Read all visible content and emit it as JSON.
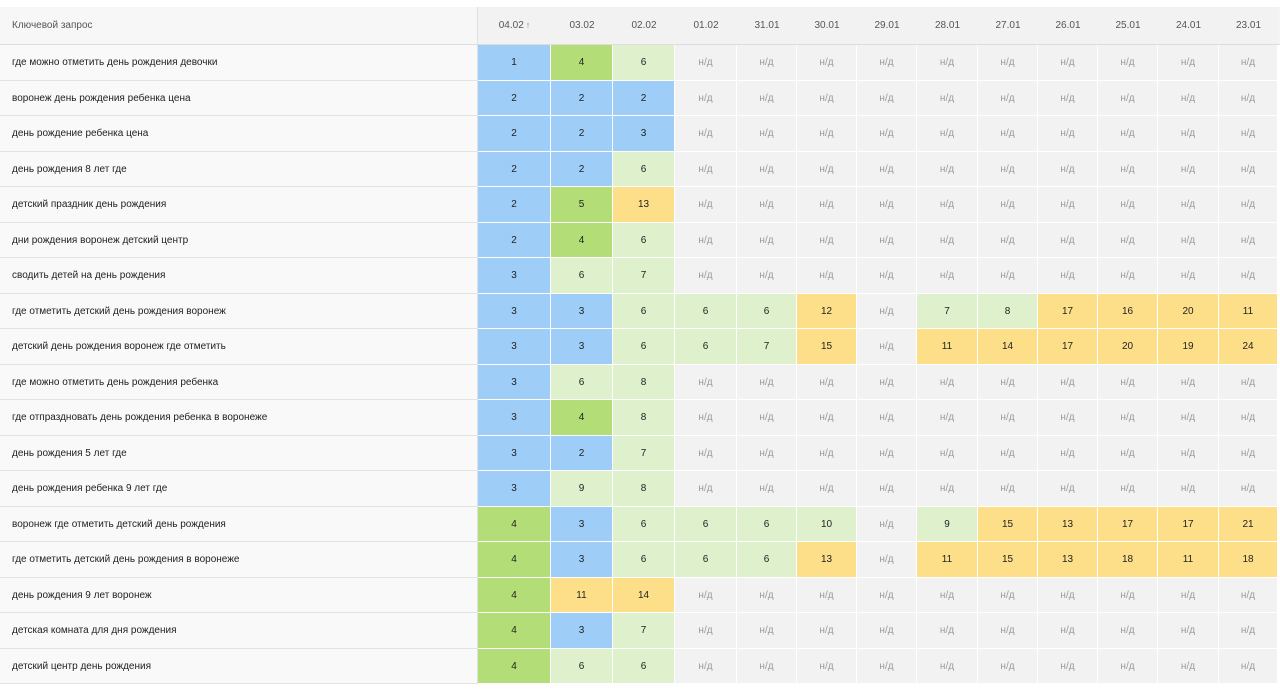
{
  "header": {
    "keyword_label": "Ключевой запрос",
    "dates": [
      "04.02",
      "03.02",
      "02.02",
      "01.02",
      "31.01",
      "30.01",
      "29.01",
      "28.01",
      "27.01",
      "26.01",
      "25.01",
      "24.01",
      "23.01"
    ],
    "sort_indicator": "↑"
  },
  "colors": {
    "top3": "#9ecdf7",
    "top5": "#b2dd77",
    "top10": "#dff0cd",
    "top30": "#fddf8a",
    "na": "#f2f2f2"
  },
  "rows": [
    {
      "keyword": "где можно отметить день рождения девочки",
      "positions": [
        "1",
        "4",
        "6",
        "н/д",
        "н/д",
        "н/д",
        "н/д",
        "н/д",
        "н/д",
        "н/д",
        "н/д",
        "н/д",
        "н/д"
      ]
    },
    {
      "keyword": "воронеж день рождения ребенка цена",
      "positions": [
        "2",
        "2",
        "2",
        "н/д",
        "н/д",
        "н/д",
        "н/д",
        "н/д",
        "н/д",
        "н/д",
        "н/д",
        "н/д",
        "н/д"
      ]
    },
    {
      "keyword": "день рождение ребенка цена",
      "positions": [
        "2",
        "2",
        "3",
        "н/д",
        "н/д",
        "н/д",
        "н/д",
        "н/д",
        "н/д",
        "н/д",
        "н/д",
        "н/д",
        "н/д"
      ]
    },
    {
      "keyword": "день рождения 8 лет где",
      "positions": [
        "2",
        "2",
        "6",
        "н/д",
        "н/д",
        "н/д",
        "н/д",
        "н/д",
        "н/д",
        "н/д",
        "н/д",
        "н/д",
        "н/д"
      ]
    },
    {
      "keyword": "детский праздник день рождения",
      "positions": [
        "2",
        "5",
        "13",
        "н/д",
        "н/д",
        "н/д",
        "н/д",
        "н/д",
        "н/д",
        "н/д",
        "н/д",
        "н/д",
        "н/д"
      ]
    },
    {
      "keyword": "дни рождения воронеж детский центр",
      "positions": [
        "2",
        "4",
        "6",
        "н/д",
        "н/д",
        "н/д",
        "н/д",
        "н/д",
        "н/д",
        "н/д",
        "н/д",
        "н/д",
        "н/д"
      ]
    },
    {
      "keyword": "сводить детей на день рождения",
      "positions": [
        "3",
        "6",
        "7",
        "н/д",
        "н/д",
        "н/д",
        "н/д",
        "н/д",
        "н/д",
        "н/д",
        "н/д",
        "н/д",
        "н/д"
      ]
    },
    {
      "keyword": "где отметить детский день рождения воронеж",
      "positions": [
        "3",
        "3",
        "6",
        "6",
        "6",
        "12",
        "н/д",
        "7",
        "8",
        "17",
        "16",
        "20",
        "11"
      ]
    },
    {
      "keyword": "детский день рождения воронеж где отметить",
      "positions": [
        "3",
        "3",
        "6",
        "6",
        "7",
        "15",
        "н/д",
        "11",
        "14",
        "17",
        "20",
        "19",
        "24"
      ]
    },
    {
      "keyword": "где можно отметить день рождения ребенка",
      "positions": [
        "3",
        "6",
        "8",
        "н/д",
        "н/д",
        "н/д",
        "н/д",
        "н/д",
        "н/д",
        "н/д",
        "н/д",
        "н/д",
        "н/д"
      ]
    },
    {
      "keyword": "где отпраздновать день рождения ребенка в воронеже",
      "positions": [
        "3",
        "4",
        "8",
        "н/д",
        "н/д",
        "н/д",
        "н/д",
        "н/д",
        "н/д",
        "н/д",
        "н/д",
        "н/д",
        "н/д"
      ]
    },
    {
      "keyword": "день рождения 5 лет где",
      "positions": [
        "3",
        "2",
        "7",
        "н/д",
        "н/д",
        "н/д",
        "н/д",
        "н/д",
        "н/д",
        "н/д",
        "н/д",
        "н/д",
        "н/д"
      ]
    },
    {
      "keyword": "день рождения ребенка 9 лет где",
      "positions": [
        "3",
        "9",
        "8",
        "н/д",
        "н/д",
        "н/д",
        "н/д",
        "н/д",
        "н/д",
        "н/д",
        "н/д",
        "н/д",
        "н/д"
      ]
    },
    {
      "keyword": "воронеж где отметить детский день рождения",
      "positions": [
        "4",
        "3",
        "6",
        "6",
        "6",
        "10",
        "н/д",
        "9",
        "15",
        "13",
        "17",
        "17",
        "21"
      ]
    },
    {
      "keyword": "где отметить детский день рождения в воронеже",
      "positions": [
        "4",
        "3",
        "6",
        "6",
        "6",
        "13",
        "н/д",
        "11",
        "15",
        "13",
        "18",
        "11",
        "18"
      ]
    },
    {
      "keyword": "день рождения 9 лет воронеж",
      "positions": [
        "4",
        "11",
        "14",
        "н/д",
        "н/д",
        "н/д",
        "н/д",
        "н/д",
        "н/д",
        "н/д",
        "н/д",
        "н/д",
        "н/д"
      ]
    },
    {
      "keyword": "детская комната для дня рождения",
      "positions": [
        "4",
        "3",
        "7",
        "н/д",
        "н/д",
        "н/д",
        "н/д",
        "н/д",
        "н/д",
        "н/д",
        "н/д",
        "н/д",
        "н/д"
      ]
    },
    {
      "keyword": "детский центр день рождения",
      "positions": [
        "4",
        "6",
        "6",
        "н/д",
        "н/д",
        "н/д",
        "н/д",
        "н/д",
        "н/д",
        "н/д",
        "н/д",
        "н/д",
        "н/д"
      ]
    }
  ]
}
